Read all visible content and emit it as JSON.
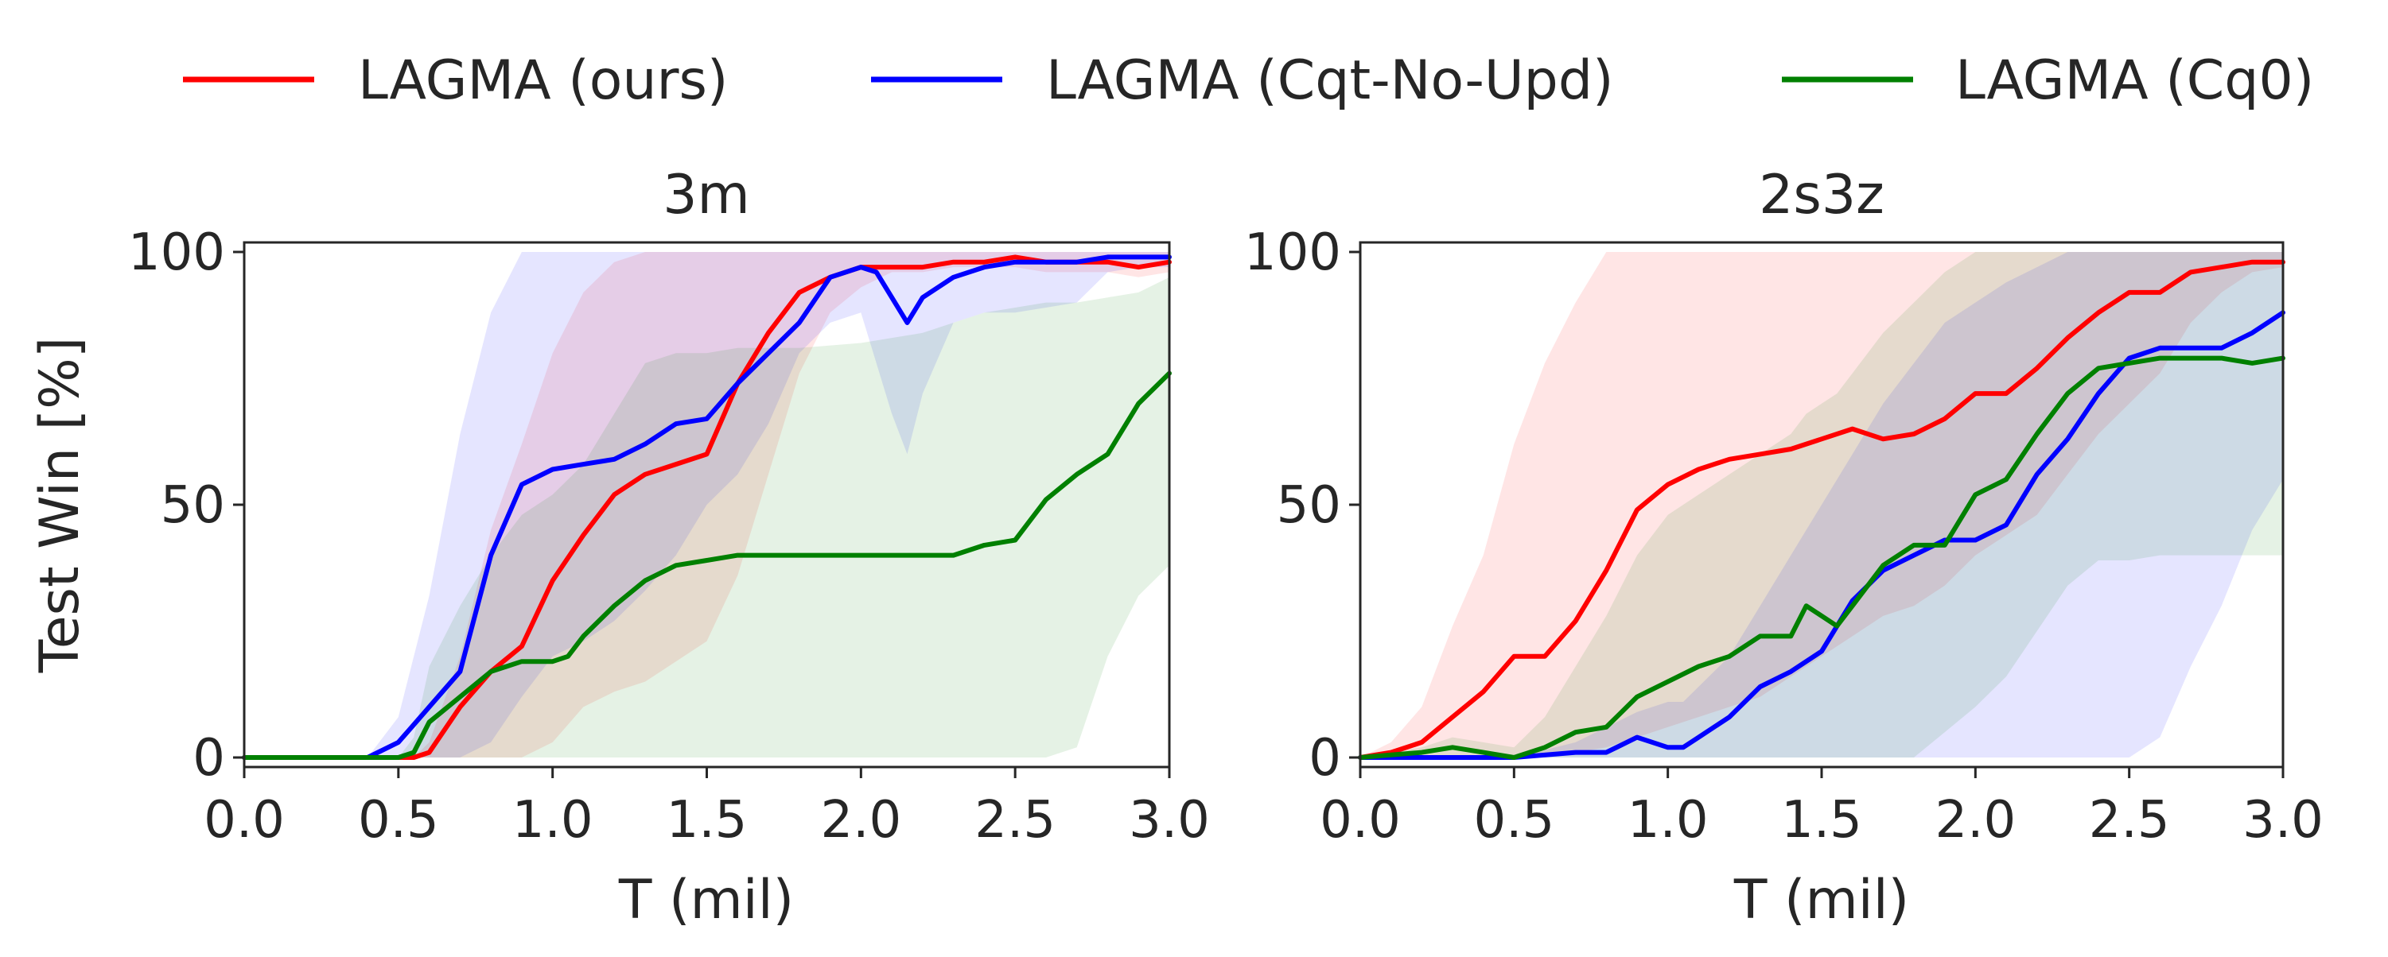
{
  "chart_data": {
    "type": "line",
    "legend": {
      "placement": "top-center",
      "entries": [
        {
          "name": "LAGMA (ours)",
          "color": "#ff0000"
        },
        {
          "name": "LAGMA (Cqt-No-Upd)",
          "color": "#0000ff"
        },
        {
          "name": "LAGMA (Cq0)",
          "color": "#008000"
        }
      ]
    },
    "panels": [
      {
        "title": "3m",
        "xlabel": "T (mil)",
        "ylabel": "Test Win [%]",
        "xlim": [
          0,
          3.0
        ],
        "ylim": [
          0,
          100
        ],
        "xticks": [
          "0.0",
          "0.5",
          "1.0",
          "1.5",
          "2.0",
          "2.5",
          "3.0"
        ],
        "yticks": [
          "0",
          "50",
          "100"
        ],
        "series": [
          {
            "name": "LAGMA (ours)",
            "color": "#ff0000",
            "x": [
              0,
              0.55,
              0.6,
              0.7,
              0.8,
              0.9,
              1.0,
              1.1,
              1.2,
              1.3,
              1.4,
              1.5,
              1.6,
              1.7,
              1.8,
              1.9,
              2.0,
              2.1,
              2.2,
              2.3,
              2.4,
              2.5,
              2.6,
              2.7,
              2.8,
              2.9,
              3.0
            ],
            "y": [
              0,
              0,
              1,
              10,
              17,
              22,
              35,
              44,
              52,
              56,
              58,
              60,
              74,
              84,
              92,
              95,
              97,
              97,
              97,
              98,
              98,
              99,
              98,
              98,
              98,
              97,
              98
            ],
            "lower": [
              0,
              0,
              0,
              0,
              0,
              0,
              3,
              10,
              13,
              15,
              19,
              23,
              36,
              56,
              76,
              88,
              93,
              96,
              96,
              97,
              97,
              97,
              96,
              96,
              96,
              95,
              96
            ],
            "upper": [
              0,
              0,
              3,
              20,
              45,
              62,
              80,
              92,
              98,
              100,
              100,
              100,
              100,
              100,
              100,
              100,
              100,
              100,
              100,
              100,
              100,
              100,
              100,
              100,
              100,
              100,
              100
            ]
          },
          {
            "name": "LAGMA (Cqt-No-Upd)",
            "color": "#0000ff",
            "x": [
              0,
              0.4,
              0.5,
              0.6,
              0.7,
              0.8,
              0.9,
              1.0,
              1.1,
              1.2,
              1.3,
              1.4,
              1.5,
              1.6,
              1.7,
              1.8,
              1.9,
              2.0,
              2.05,
              2.1,
              2.15,
              2.2,
              2.3,
              2.4,
              2.5,
              2.6,
              2.7,
              2.8,
              2.9,
              3.0
            ],
            "y": [
              0,
              0,
              3,
              10,
              17,
              40,
              54,
              57,
              58,
              59,
              62,
              66,
              67,
              74,
              80,
              86,
              95,
              97,
              96,
              91,
              86,
              91,
              95,
              97,
              98,
              98,
              98,
              99,
              99,
              99
            ],
            "lower": [
              0,
              0,
              0,
              0,
              0,
              3,
              12,
              20,
              23,
              27,
              33,
              40,
              50,
              56,
              66,
              80,
              86,
              88,
              78,
              68,
              60,
              72,
              86,
              88,
              88,
              89,
              90,
              96,
              97,
              97
            ],
            "upper": [
              0,
              0,
              8,
              32,
              64,
              88,
              100,
              100,
              100,
              100,
              100,
              100,
              100,
              100,
              100,
              100,
              100,
              100,
              100,
              100,
              100,
              100,
              100,
              100,
              100,
              100,
              100,
              100,
              100,
              100
            ]
          },
          {
            "name": "LAGMA (Cq0)",
            "color": "#008000",
            "x": [
              0,
              0.5,
              0.55,
              0.6,
              0.7,
              0.8,
              0.9,
              1.0,
              1.05,
              1.1,
              1.2,
              1.3,
              1.4,
              1.5,
              1.6,
              1.8,
              2.0,
              2.2,
              2.3,
              2.4,
              2.5,
              2.6,
              2.7,
              2.8,
              2.9,
              3.0
            ],
            "y": [
              0,
              0,
              1,
              7,
              12,
              17,
              19,
              19,
              20,
              24,
              30,
              35,
              38,
              39,
              40,
              40,
              40,
              40,
              40,
              42,
              43,
              51,
              56,
              60,
              70,
              76
            ],
            "lower": [
              0,
              0,
              0,
              0,
              0,
              0,
              0,
              0,
              0,
              0,
              0,
              0,
              0,
              0,
              0,
              0,
              0,
              0,
              0,
              0,
              0,
              0,
              2,
              20,
              32,
              38
            ],
            "upper": [
              0,
              0,
              4,
              18,
              30,
              40,
              48,
              52,
              55,
              58,
              68,
              78,
              80,
              80,
              81,
              81,
              82,
              84,
              86,
              88,
              89,
              90,
              90,
              91,
              92,
              95
            ]
          }
        ]
      },
      {
        "title": "2s3z",
        "xlabel": "T (mil)",
        "ylabel": "",
        "xlim": [
          0,
          3.0
        ],
        "ylim": [
          0,
          100
        ],
        "xticks": [
          "0.0",
          "0.5",
          "1.0",
          "1.5",
          "2.0",
          "2.5",
          "3.0"
        ],
        "yticks": [
          "0",
          "50",
          "100"
        ],
        "series": [
          {
            "name": "LAGMA (ours)",
            "color": "#ff0000",
            "x": [
              0,
              0.1,
              0.2,
              0.3,
              0.4,
              0.5,
              0.6,
              0.7,
              0.8,
              0.9,
              1.0,
              1.1,
              1.2,
              1.3,
              1.4,
              1.5,
              1.6,
              1.7,
              1.8,
              1.9,
              2.0,
              2.1,
              2.2,
              2.3,
              2.4,
              2.5,
              2.6,
              2.7,
              2.8,
              2.9,
              3.0
            ],
            "y": [
              0,
              1,
              3,
              8,
              13,
              20,
              20,
              27,
              37,
              49,
              54,
              57,
              59,
              60,
              61,
              63,
              65,
              63,
              64,
              67,
              72,
              72,
              77,
              83,
              88,
              92,
              92,
              96,
              97,
              98,
              98
            ],
            "lower": [
              0,
              0,
              0,
              0,
              0,
              0,
              0,
              1,
              2,
              4,
              6,
              8,
              10,
              12,
              16,
              20,
              24,
              28,
              30,
              34,
              40,
              44,
              48,
              56,
              64,
              70,
              76,
              86,
              92,
              96,
              97
            ],
            "upper": [
              0,
              3,
              10,
              26,
              40,
              62,
              78,
              90,
              100,
              100,
              100,
              100,
              100,
              100,
              100,
              100,
              100,
              100,
              100,
              100,
              100,
              100,
              100,
              100,
              100,
              100,
              100,
              100,
              100,
              100,
              100
            ]
          },
          {
            "name": "LAGMA (Cqt-No-Upd)",
            "color": "#0000ff",
            "x": [
              0,
              0.5,
              0.7,
              0.8,
              0.9,
              1.0,
              1.05,
              1.1,
              1.2,
              1.3,
              1.4,
              1.5,
              1.6,
              1.7,
              1.8,
              1.9,
              2.0,
              2.1,
              2.2,
              2.3,
              2.4,
              2.5,
              2.6,
              2.7,
              2.8,
              2.9,
              3.0
            ],
            "y": [
              0,
              0,
              1,
              1,
              4,
              2,
              2,
              4,
              8,
              14,
              17,
              21,
              31,
              37,
              40,
              43,
              43,
              46,
              56,
              63,
              72,
              79,
              81,
              81,
              81,
              84,
              88
            ],
            "lower": [
              0,
              0,
              0,
              0,
              0,
              0,
              0,
              0,
              0,
              0,
              0,
              0,
              0,
              0,
              0,
              0,
              0,
              0,
              0,
              0,
              0,
              0,
              4,
              18,
              30,
              45,
              55
            ],
            "upper": [
              0,
              0,
              3,
              6,
              9,
              11,
              11,
              14,
              20,
              30,
              40,
              50,
              60,
              70,
              78,
              86,
              90,
              94,
              97,
              100,
              100,
              100,
              100,
              100,
              100,
              100,
              100
            ]
          },
          {
            "name": "LAGMA (Cq0)",
            "color": "#008000",
            "x": [
              0,
              0.2,
              0.3,
              0.4,
              0.5,
              0.6,
              0.7,
              0.8,
              0.9,
              1.0,
              1.1,
              1.2,
              1.3,
              1.4,
              1.45,
              1.5,
              1.55,
              1.6,
              1.7,
              1.8,
              1.9,
              2.0,
              2.1,
              2.2,
              2.3,
              2.4,
              2.5,
              2.6,
              2.7,
              2.8,
              2.9,
              3.0
            ],
            "y": [
              0,
              1,
              2,
              1,
              0,
              2,
              5,
              6,
              12,
              15,
              18,
              20,
              24,
              24,
              30,
              28,
              26,
              30,
              38,
              42,
              42,
              52,
              55,
              64,
              72,
              77,
              78,
              79,
              79,
              79,
              78,
              79
            ],
            "lower": [
              0,
              0,
              0,
              0,
              0,
              0,
              0,
              0,
              0,
              0,
              0,
              0,
              0,
              0,
              0,
              0,
              0,
              0,
              0,
              0,
              5,
              10,
              16,
              25,
              34,
              39,
              39,
              40,
              40,
              40,
              40,
              40
            ],
            "upper": [
              0,
              2,
              4,
              3,
              2,
              8,
              18,
              28,
              40,
              48,
              52,
              56,
              60,
              64,
              68,
              70,
              72,
              76,
              84,
              90,
              96,
              100,
              100,
              100,
              100,
              100,
              100,
              100,
              100,
              100,
              100,
              100
            ]
          }
        ]
      }
    ]
  }
}
